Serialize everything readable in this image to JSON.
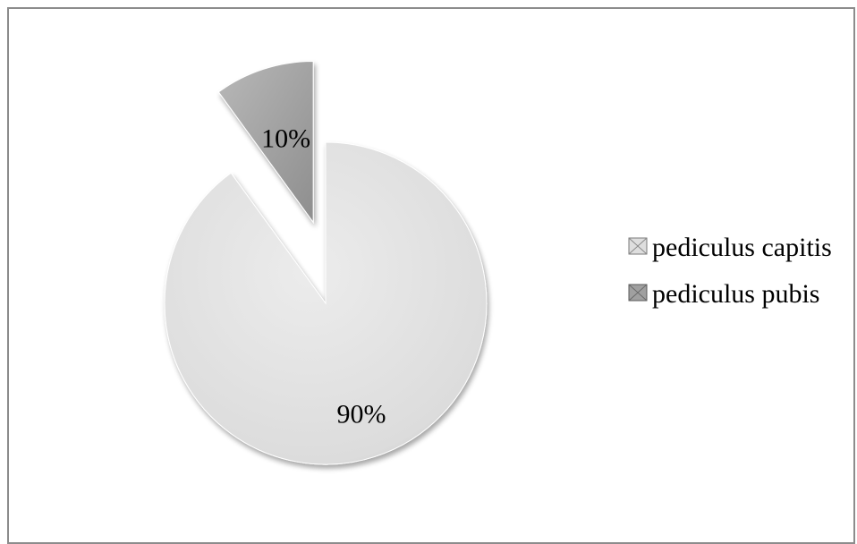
{
  "chart_data": {
    "type": "pie",
    "slices": [
      {
        "label": "pediculus capitis",
        "value": 90,
        "display": "90%",
        "color": "#dedede",
        "exploded": false
      },
      {
        "label": "pediculus pubis",
        "value": 10,
        "display": "10%",
        "color": "#a9a9a9",
        "exploded": true
      }
    ],
    "legend_position": "right"
  }
}
